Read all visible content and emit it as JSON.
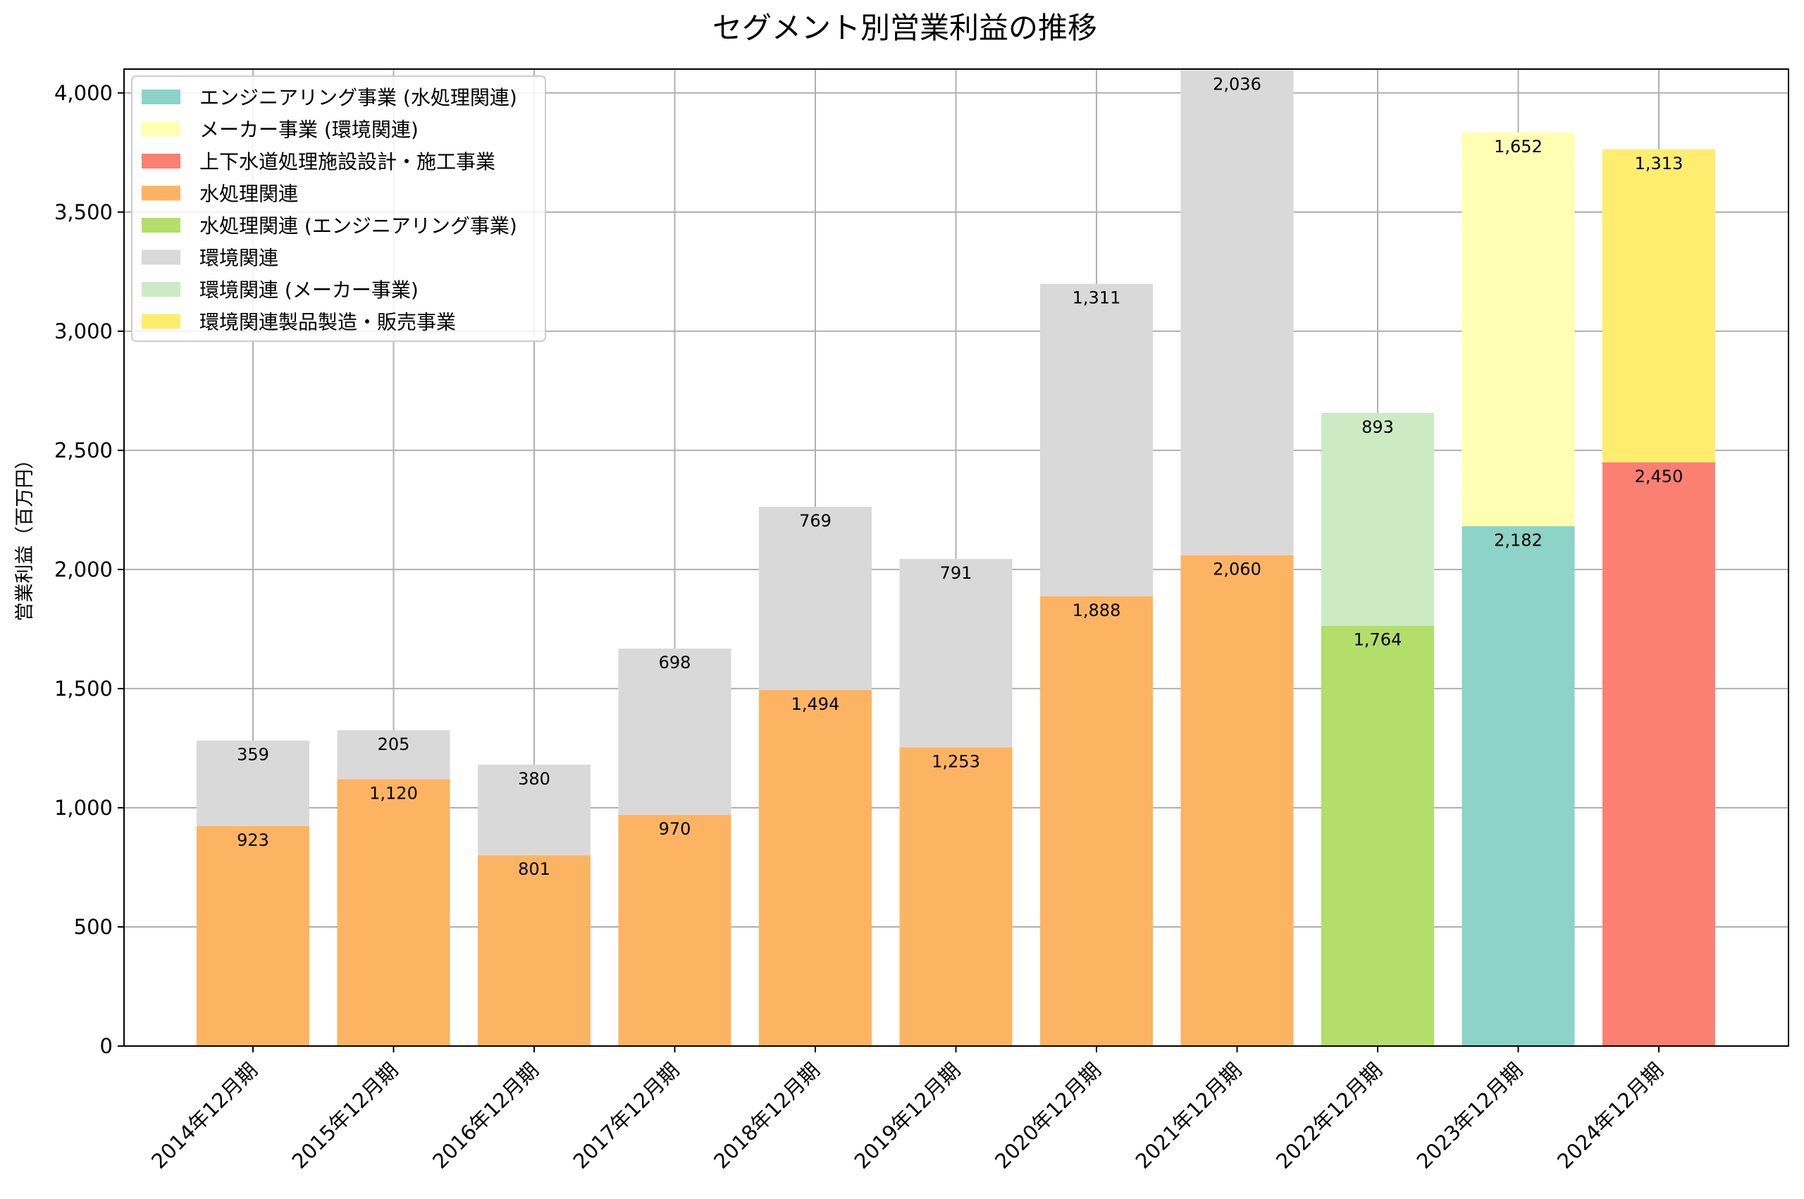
{
  "chart_data": {
    "type": "bar",
    "stacked": true,
    "title": "セグメント別営業利益の推移",
    "xlabel": "",
    "ylabel": "営業利益（百万円）",
    "ylim": [
      0,
      4100
    ],
    "yticks": [
      0,
      500,
      1000,
      1500,
      2000,
      2500,
      3000,
      3500,
      4000
    ],
    "ytick_labels": [
      "0",
      "500",
      "1,000",
      "1,500",
      "2,000",
      "2,500",
      "3,000",
      "3,500",
      "4,000"
    ],
    "grid": true,
    "legend_position": "top-left",
    "categories": [
      "2014年12月期",
      "2015年12月期",
      "2016年12月期",
      "2017年12月期",
      "2018年12月期",
      "2019年12月期",
      "2020年12月期",
      "2021年12月期",
      "2022年12月期",
      "2023年12月期",
      "2024年12月期"
    ],
    "series": [
      {
        "name": "エンジニアリング事業 (水処理関連)",
        "color": "#8dd3c7",
        "values": [
          null,
          null,
          null,
          null,
          null,
          null,
          null,
          null,
          null,
          2182,
          null
        ]
      },
      {
        "name": "メーカー事業 (環境関連)",
        "color": "#ffffb3",
        "values": [
          null,
          null,
          null,
          null,
          null,
          null,
          null,
          null,
          null,
          1652,
          null
        ]
      },
      {
        "name": "上下水道処理施設設計・施工事業",
        "color": "#fb8072",
        "values": [
          null,
          null,
          null,
          null,
          null,
          null,
          null,
          null,
          null,
          null,
          2450
        ]
      },
      {
        "name": "水処理関連",
        "color": "#fdb462",
        "values": [
          923,
          1120,
          801,
          970,
          1494,
          1253,
          1888,
          2060,
          null,
          null,
          null
        ]
      },
      {
        "name": "水処理関連 (エンジニアリング事業)",
        "color": "#b3de69",
        "values": [
          null,
          null,
          null,
          null,
          null,
          null,
          null,
          null,
          1764,
          null,
          null
        ]
      },
      {
        "name": "環境関連",
        "color": "#d9d9d9",
        "values": [
          359,
          205,
          380,
          698,
          769,
          791,
          1311,
          2036,
          null,
          null,
          null
        ]
      },
      {
        "name": "環境関連 (メーカー事業)",
        "color": "#ccebc5",
        "values": [
          null,
          null,
          null,
          null,
          null,
          null,
          null,
          null,
          893,
          null,
          null
        ]
      },
      {
        "name": "環境関連製品製造・販売事業",
        "color": "#ffed6f",
        "values": [
          null,
          null,
          null,
          null,
          null,
          null,
          null,
          null,
          null,
          null,
          1313
        ]
      }
    ],
    "stack_order": [
      [
        "水処理関連",
        "環境関連"
      ],
      [
        "水処理関連",
        "環境関連"
      ],
      [
        "水処理関連",
        "環境関連"
      ],
      [
        "水処理関連",
        "環境関連"
      ],
      [
        "水処理関連",
        "環境関連"
      ],
      [
        "水処理関連",
        "環境関連"
      ],
      [
        "水処理関連",
        "環境関連"
      ],
      [
        "水処理関連",
        "環境関連"
      ],
      [
        "水処理関連 (エンジニアリング事業)",
        "環境関連 (メーカー事業)"
      ],
      [
        "エンジニアリング事業 (水処理関連)",
        "メーカー事業 (環境関連)"
      ],
      [
        "上下水道処理施設設計・施工事業",
        "環境関連製品製造・販売事業"
      ]
    ]
  }
}
